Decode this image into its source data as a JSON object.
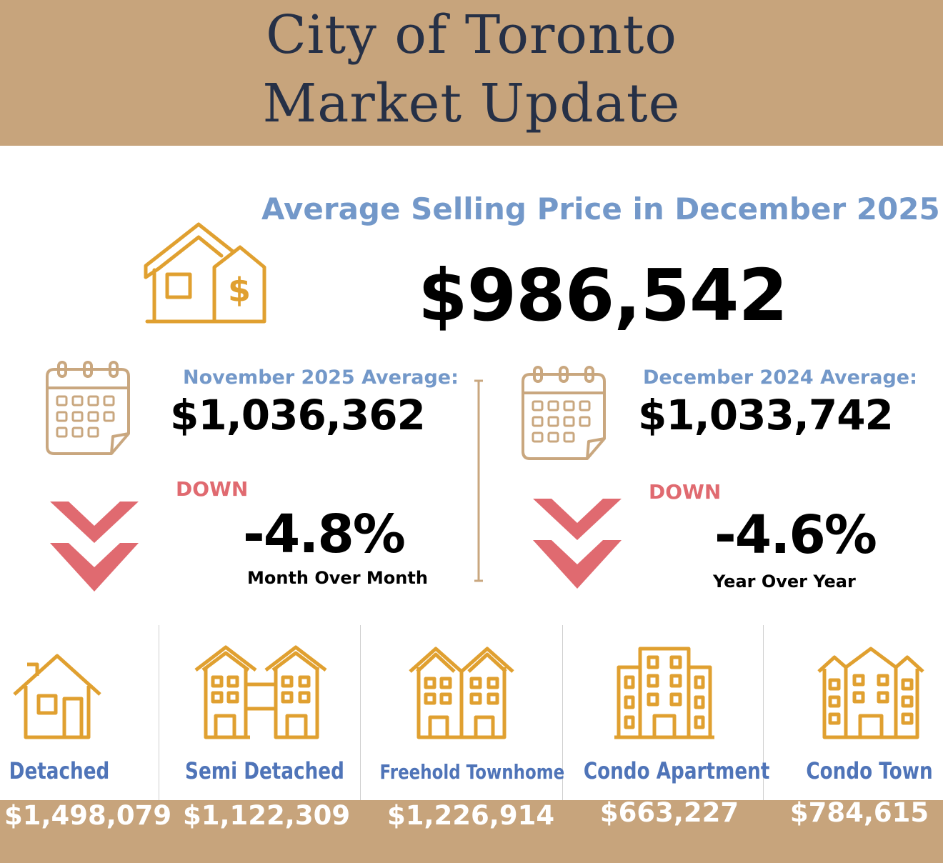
{
  "header": {
    "title_line1": "City of Toronto",
    "title_line2": "Market Update"
  },
  "summary": {
    "subtitle": "Average Selling Price in December 2025",
    "average_price": "$986,542"
  },
  "month_comparison": {
    "label": "November  2025 Average:",
    "value": "$1,036,362",
    "direction": "DOWN",
    "change": "-4.8%",
    "caption": "Month Over Month"
  },
  "year_comparison": {
    "label": "December 2024 Average:",
    "value": "$1,033,742",
    "direction": "DOWN",
    "change": "-4.6%",
    "caption": "Year Over Year"
  },
  "property_types": [
    {
      "name": "Detached",
      "price": "$1,498,079",
      "icon": "detached-house-icon"
    },
    {
      "name": "Semi Detached",
      "price": "$1,122,309",
      "icon": "semi-detached-icon"
    },
    {
      "name": "Freehold Townhome",
      "price": "$1,226,914",
      "icon": "freehold-townhome-icon"
    },
    {
      "name": "Condo Apartment",
      "price": "$663,227",
      "icon": "condo-apartment-icon"
    },
    {
      "name": "Condo Town",
      "price": "$784,615",
      "icon": "condo-town-icon"
    }
  ],
  "colors": {
    "gold": "#c7a47c",
    "navy": "#263046",
    "blue": "#7398c9",
    "down_red": "#e06a70",
    "icon_orange": "#e0a030"
  }
}
